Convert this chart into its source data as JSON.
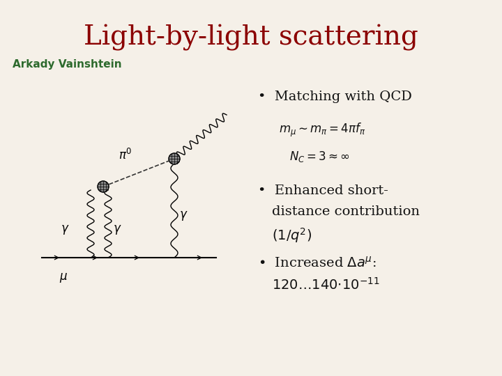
{
  "background_color": "#f5f0e8",
  "title": "Light-by-light scattering",
  "title_color": "#8b0000",
  "title_fontsize": 28,
  "author": "Arkady Vainshtein",
  "author_color": "#2d6a2d",
  "author_fontsize": 11,
  "bullet1": "Matching with QCD",
  "formula1a": "$m_{\\mu} \\sim m_{\\pi} = 4\\pi f_{\\pi}$",
  "formula1b": "$N_C = 3 \\approx \\infty$",
  "bullet2_line1": "Enhanced short-",
  "bullet2_line2": "distance contribution",
  "bullet2_line3": "$(1/q^2)$",
  "bullet3_line1": "Increased $\\Delta a^{\\mu}$:",
  "bullet3_line2": "$120{\\ldots}140{\\cdot}10^{-11}$",
  "text_color": "#111111",
  "bullet_fontsize": 14,
  "formula_fontsize": 12
}
